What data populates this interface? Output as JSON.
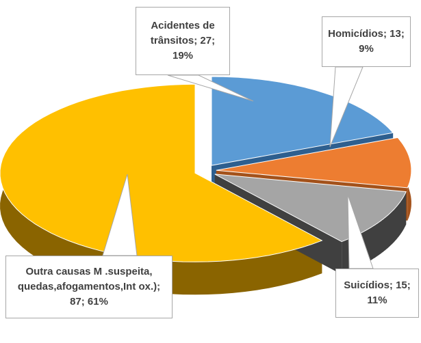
{
  "chart_data": {
    "type": "pie3d",
    "values": [
      27,
      13,
      15,
      87
    ],
    "value_labels": [
      "Acidentes de trânsitos; 27; 19%",
      "Homicídios; 13; 9%",
      "Suicídios; 15; 11%",
      "Outra causas  M .suspeita, quedas,afogamentos,Int ox.); 87; 61%"
    ],
    "colors": [
      "#5b9bd5",
      "#ed7d31",
      "#a5a5a5",
      "#ffc000"
    ],
    "side_colors": [
      "#2e5f8f",
      "#a3521b",
      "#404040",
      "#8a6400"
    ]
  }
}
